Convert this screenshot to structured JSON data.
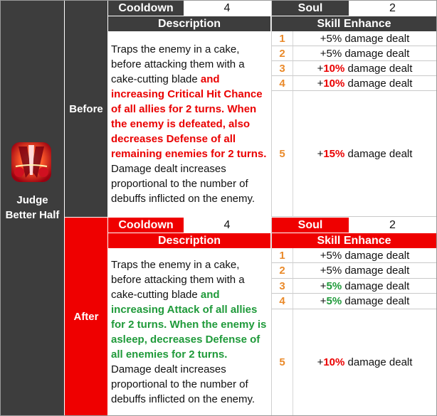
{
  "skill": {
    "name_line1": "Judge",
    "name_line2": "Better Half",
    "icon": "cake-blade-skill-icon"
  },
  "colors": {
    "dark_header": "#3d3d3d",
    "red_header": "#ef0000",
    "number_orange": "#ea8a2a",
    "highlight_red": "#ea0000",
    "highlight_green": "#1f9a3a"
  },
  "before": {
    "label": "Before",
    "cooldown_label": "Cooldown",
    "cooldown_value": "4",
    "soul_label": "Soul",
    "soul_value": "2",
    "description_header": "Description",
    "enhance_header": "Skill Enhance",
    "description": {
      "pre": "Traps the enemy in a cake, before attacking them with a cake-cutting blade ",
      "highlight": "and increasing Critical Hit Chance of all allies for 2 turns. When the enemy is defeated, also decreases Defense of all remaining enemies for 2 turns.",
      "post": " Damage dealt increases proportional to the number of debuffs inflicted on the enemy."
    },
    "enhancements": [
      {
        "level": "1",
        "pre": "+5% damage dealt",
        "bold": "",
        "post": ""
      },
      {
        "level": "2",
        "pre": "+5% damage dealt",
        "bold": "",
        "post": ""
      },
      {
        "level": "3",
        "pre": "+",
        "bold": "10%",
        "post": " damage dealt"
      },
      {
        "level": "4",
        "pre": "+",
        "bold": "10%",
        "post": " damage dealt"
      },
      {
        "level": "5",
        "pre": "+",
        "bold": "15%",
        "post": " damage dealt"
      }
    ]
  },
  "after": {
    "label": "After",
    "cooldown_label": "Cooldown",
    "cooldown_value": "4",
    "soul_label": "Soul",
    "soul_value": "2",
    "description_header": "Description",
    "enhance_header": "Skill Enhance",
    "description": {
      "pre": "Traps the enemy in a cake, before attacking them with a cake-cutting blade ",
      "highlight": "and increasing Attack of all allies for 2 turns. When the enemy is asleep, decreases Defense of all enemies for 2 turns.",
      "post": " Damage dealt increases proportional to the number of debuffs inflicted on the enemy."
    },
    "enhancements": [
      {
        "level": "1",
        "pre": "+5% damage dealt",
        "bold": "",
        "post": ""
      },
      {
        "level": "2",
        "pre": "+5% damage dealt",
        "bold": "",
        "post": ""
      },
      {
        "level": "3",
        "pre": "+",
        "bold": "5%",
        "post": " damage dealt"
      },
      {
        "level": "4",
        "pre": "+",
        "bold": "5%",
        "post": " damage dealt"
      },
      {
        "level": "5",
        "pre": "+",
        "bold": "10%",
        "post": " damage dealt"
      }
    ]
  }
}
